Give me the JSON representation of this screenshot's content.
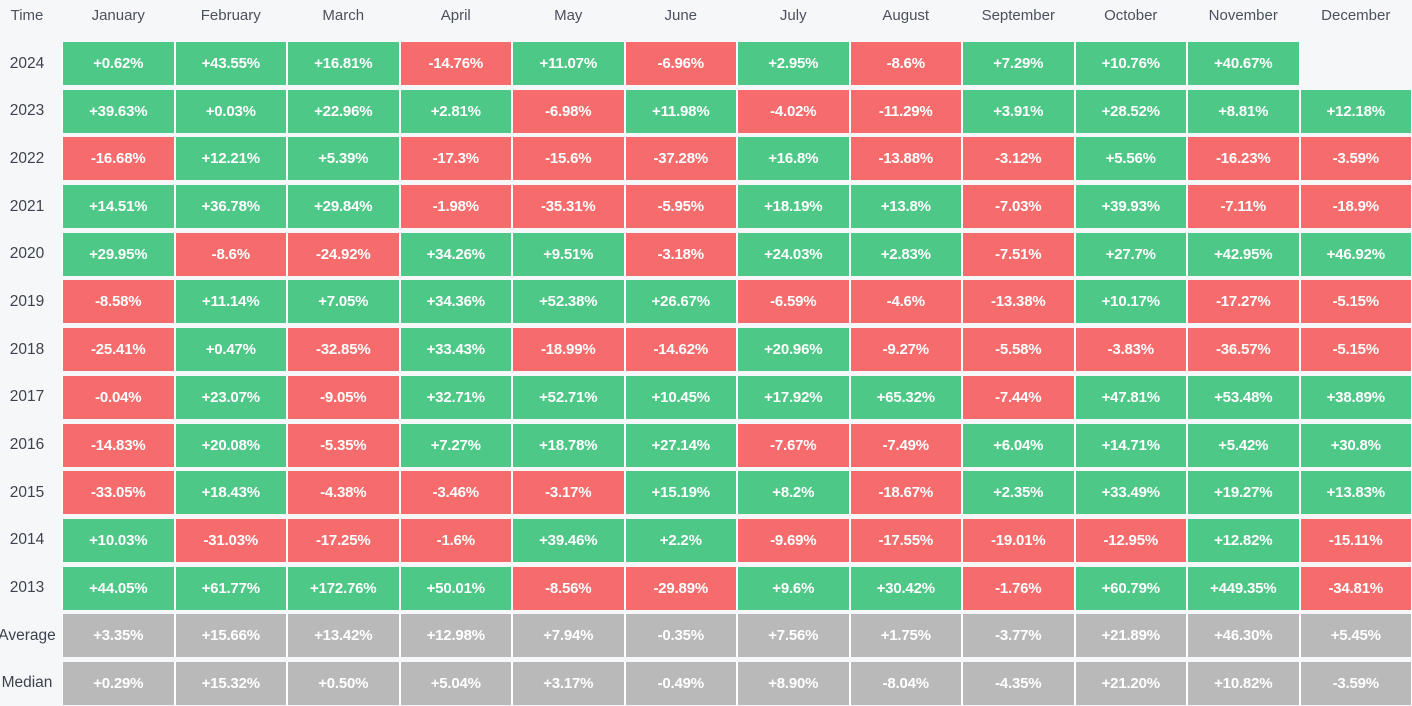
{
  "colors": {
    "background": "#f6f7f8",
    "positive": "#4ec887",
    "negative": "#f66c6c",
    "summary": "#b9b9b9",
    "cell_text": "#ffffff",
    "row_label_text": "#3d434e",
    "header_text": "#4b515c",
    "cell_gap": "#ffffff"
  },
  "table": {
    "corner_label": "Time",
    "months": [
      "January",
      "February",
      "March",
      "April",
      "May",
      "June",
      "July",
      "August",
      "September",
      "October",
      "November",
      "December"
    ],
    "rows": [
      {
        "label": "2024",
        "kind": "year",
        "cells": [
          "+0.62%",
          "+43.55%",
          "+16.81%",
          "-14.76%",
          "+11.07%",
          "-6.96%",
          "+2.95%",
          "-8.6%",
          "+7.29%",
          "+10.76%",
          "+40.67%",
          ""
        ]
      },
      {
        "label": "2023",
        "kind": "year",
        "cells": [
          "+39.63%",
          "+0.03%",
          "+22.96%",
          "+2.81%",
          "-6.98%",
          "+11.98%",
          "-4.02%",
          "-11.29%",
          "+3.91%",
          "+28.52%",
          "+8.81%",
          "+12.18%"
        ]
      },
      {
        "label": "2022",
        "kind": "year",
        "cells": [
          "-16.68%",
          "+12.21%",
          "+5.39%",
          "-17.3%",
          "-15.6%",
          "-37.28%",
          "+16.8%",
          "-13.88%",
          "-3.12%",
          "+5.56%",
          "-16.23%",
          "-3.59%"
        ]
      },
      {
        "label": "2021",
        "kind": "year",
        "cells": [
          "+14.51%",
          "+36.78%",
          "+29.84%",
          "-1.98%",
          "-35.31%",
          "-5.95%",
          "+18.19%",
          "+13.8%",
          "-7.03%",
          "+39.93%",
          "-7.11%",
          "-18.9%"
        ]
      },
      {
        "label": "2020",
        "kind": "year",
        "cells": [
          "+29.95%",
          "-8.6%",
          "-24.92%",
          "+34.26%",
          "+9.51%",
          "-3.18%",
          "+24.03%",
          "+2.83%",
          "-7.51%",
          "+27.7%",
          "+42.95%",
          "+46.92%"
        ]
      },
      {
        "label": "2019",
        "kind": "year",
        "cells": [
          "-8.58%",
          "+11.14%",
          "+7.05%",
          "+34.36%",
          "+52.38%",
          "+26.67%",
          "-6.59%",
          "-4.6%",
          "-13.38%",
          "+10.17%",
          "-17.27%",
          "-5.15%"
        ]
      },
      {
        "label": "2018",
        "kind": "year",
        "cells": [
          "-25.41%",
          "+0.47%",
          "-32.85%",
          "+33.43%",
          "-18.99%",
          "-14.62%",
          "+20.96%",
          "-9.27%",
          "-5.58%",
          "-3.83%",
          "-36.57%",
          "-5.15%"
        ]
      },
      {
        "label": "2017",
        "kind": "year",
        "cells": [
          "-0.04%",
          "+23.07%",
          "-9.05%",
          "+32.71%",
          "+52.71%",
          "+10.45%",
          "+17.92%",
          "+65.32%",
          "-7.44%",
          "+47.81%",
          "+53.48%",
          "+38.89%"
        ]
      },
      {
        "label": "2016",
        "kind": "year",
        "cells": [
          "-14.83%",
          "+20.08%",
          "-5.35%",
          "+7.27%",
          "+18.78%",
          "+27.14%",
          "-7.67%",
          "-7.49%",
          "+6.04%",
          "+14.71%",
          "+5.42%",
          "+30.8%"
        ]
      },
      {
        "label": "2015",
        "kind": "year",
        "cells": [
          "-33.05%",
          "+18.43%",
          "-4.38%",
          "-3.46%",
          "-3.17%",
          "+15.19%",
          "+8.2%",
          "-18.67%",
          "+2.35%",
          "+33.49%",
          "+19.27%",
          "+13.83%"
        ]
      },
      {
        "label": "2014",
        "kind": "year",
        "cells": [
          "+10.03%",
          "-31.03%",
          "-17.25%",
          "-1.6%",
          "+39.46%",
          "+2.2%",
          "-9.69%",
          "-17.55%",
          "-19.01%",
          "-12.95%",
          "+12.82%",
          "-15.11%"
        ]
      },
      {
        "label": "2013",
        "kind": "year",
        "cells": [
          "+44.05%",
          "+61.77%",
          "+172.76%",
          "+50.01%",
          "-8.56%",
          "-29.89%",
          "+9.6%",
          "+30.42%",
          "-1.76%",
          "+60.79%",
          "+449.35%",
          "-34.81%"
        ]
      },
      {
        "label": "Average",
        "kind": "summary",
        "cells": [
          "+3.35%",
          "+15.66%",
          "+13.42%",
          "+12.98%",
          "+7.94%",
          "-0.35%",
          "+7.56%",
          "+1.75%",
          "-3.77%",
          "+21.89%",
          "+46.30%",
          "+5.45%"
        ]
      },
      {
        "label": "Median",
        "kind": "summary",
        "cells": [
          "+0.29%",
          "+15.32%",
          "+0.50%",
          "+5.04%",
          "+3.17%",
          "-0.49%",
          "+8.90%",
          "-8.04%",
          "-4.35%",
          "+21.20%",
          "+10.82%",
          "-3.59%"
        ]
      }
    ]
  },
  "chart_data": {
    "type": "heatmap",
    "columns": [
      "January",
      "February",
      "March",
      "April",
      "May",
      "June",
      "July",
      "August",
      "September",
      "October",
      "November",
      "December"
    ],
    "row_labels": [
      "2024",
      "2023",
      "2022",
      "2021",
      "2020",
      "2019",
      "2018",
      "2017",
      "2016",
      "2015",
      "2014",
      "2013",
      "Average",
      "Median"
    ],
    "values_percent": [
      [
        0.62,
        43.55,
        16.81,
        -14.76,
        11.07,
        -6.96,
        2.95,
        -8.6,
        7.29,
        10.76,
        40.67,
        null
      ],
      [
        39.63,
        0.03,
        22.96,
        2.81,
        -6.98,
        11.98,
        -4.02,
        -11.29,
        3.91,
        28.52,
        8.81,
        12.18
      ],
      [
        -16.68,
        12.21,
        5.39,
        -17.3,
        -15.6,
        -37.28,
        16.8,
        -13.88,
        -3.12,
        5.56,
        -16.23,
        -3.59
      ],
      [
        14.51,
        36.78,
        29.84,
        -1.98,
        -35.31,
        -5.95,
        18.19,
        13.8,
        -7.03,
        39.93,
        -7.11,
        -18.9
      ],
      [
        29.95,
        -8.6,
        -24.92,
        34.26,
        9.51,
        -3.18,
        24.03,
        2.83,
        -7.51,
        27.7,
        42.95,
        46.92
      ],
      [
        -8.58,
        11.14,
        7.05,
        34.36,
        52.38,
        26.67,
        -6.59,
        -4.6,
        -13.38,
        10.17,
        -17.27,
        -5.15
      ],
      [
        -25.41,
        0.47,
        -32.85,
        33.43,
        -18.99,
        -14.62,
        20.96,
        -9.27,
        -5.58,
        -3.83,
        -36.57,
        -5.15
      ],
      [
        -0.04,
        23.07,
        -9.05,
        32.71,
        52.71,
        10.45,
        17.92,
        65.32,
        -7.44,
        47.81,
        53.48,
        38.89
      ],
      [
        -14.83,
        20.08,
        -5.35,
        7.27,
        18.78,
        27.14,
        -7.67,
        -7.49,
        6.04,
        14.71,
        5.42,
        30.8
      ],
      [
        -33.05,
        18.43,
        -4.38,
        -3.46,
        -3.17,
        15.19,
        8.2,
        -18.67,
        2.35,
        33.49,
        19.27,
        13.83
      ],
      [
        10.03,
        -31.03,
        -17.25,
        -1.6,
        39.46,
        2.2,
        -9.69,
        -17.55,
        -19.01,
        -12.95,
        12.82,
        -15.11
      ],
      [
        44.05,
        61.77,
        172.76,
        50.01,
        -8.56,
        -29.89,
        9.6,
        30.42,
        -1.76,
        60.79,
        449.35,
        -34.81
      ],
      [
        3.35,
        15.66,
        13.42,
        12.98,
        7.94,
        -0.35,
        7.56,
        1.75,
        -3.77,
        21.89,
        46.3,
        5.45
      ],
      [
        0.29,
        15.32,
        0.5,
        5.04,
        3.17,
        -0.49,
        8.9,
        -8.04,
        -4.35,
        21.2,
        10.82,
        -3.59
      ]
    ],
    "legend_position": "none",
    "grid": false,
    "color_rule": "green = positive month, red = negative month, grey = summary rows (Average / Median)"
  }
}
